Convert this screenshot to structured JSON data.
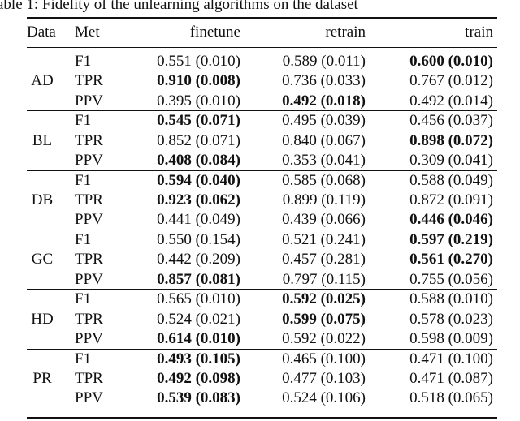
{
  "caption": "able 1: Fidelity of the unlearning algorithms on the dataset",
  "table": {
    "header": [
      "Data",
      "Met",
      "finetune",
      "retrain",
      "train"
    ],
    "groups": [
      {
        "data": "AD",
        "rows": [
          [
            "F1",
            "0.551 (0.010)",
            "0.589 (0.011)",
            "0.600 (0.010)"
          ],
          [
            "TPR",
            "0.910 (0.008)",
            "0.736 (0.033)",
            "0.767 (0.012)"
          ],
          [
            "PPV",
            "0.395 (0.010)",
            "0.492 (0.018)",
            "0.492 (0.014)"
          ]
        ],
        "bold": [
          [
            false,
            false,
            true
          ],
          [
            true,
            false,
            false
          ],
          [
            false,
            true,
            false
          ]
        ]
      },
      {
        "data": "BL",
        "rows": [
          [
            "F1",
            "0.545 (0.071)",
            "0.495 (0.039)",
            "0.456 (0.037)"
          ],
          [
            "TPR",
            "0.852 (0.071)",
            "0.840 (0.067)",
            "0.898 (0.072)"
          ],
          [
            "PPV",
            "0.408 (0.084)",
            "0.353 (0.041)",
            "0.309 (0.041)"
          ]
        ],
        "bold": [
          [
            true,
            false,
            false
          ],
          [
            false,
            false,
            true
          ],
          [
            true,
            false,
            false
          ]
        ]
      },
      {
        "data": "DB",
        "rows": [
          [
            "F1",
            "0.594 (0.040)",
            "0.585 (0.068)",
            "0.588 (0.049)"
          ],
          [
            "TPR",
            "0.923 (0.062)",
            "0.899 (0.119)",
            "0.872 (0.091)"
          ],
          [
            "PPV",
            "0.441 (0.049)",
            "0.439 (0.066)",
            "0.446 (0.046)"
          ]
        ],
        "bold": [
          [
            true,
            false,
            false
          ],
          [
            true,
            false,
            false
          ],
          [
            false,
            false,
            true
          ]
        ]
      },
      {
        "data": "GC",
        "rows": [
          [
            "F1",
            "0.550 (0.154)",
            "0.521 (0.241)",
            "0.597 (0.219)"
          ],
          [
            "TPR",
            "0.442 (0.209)",
            "0.457 (0.281)",
            "0.561 (0.270)"
          ],
          [
            "PPV",
            "0.857 (0.081)",
            "0.797 (0.115)",
            "0.755 (0.056)"
          ]
        ],
        "bold": [
          [
            false,
            false,
            true
          ],
          [
            false,
            false,
            true
          ],
          [
            true,
            false,
            false
          ]
        ]
      },
      {
        "data": "HD",
        "rows": [
          [
            "F1",
            "0.565 (0.010)",
            "0.592 (0.025)",
            "0.588 (0.010)"
          ],
          [
            "TPR",
            "0.524 (0.021)",
            "0.599 (0.075)",
            "0.578 (0.023)"
          ],
          [
            "PPV",
            "0.614 (0.010)",
            "0.592 (0.022)",
            "0.598 (0.009)"
          ]
        ],
        "bold": [
          [
            false,
            true,
            false
          ],
          [
            false,
            true,
            false
          ],
          [
            true,
            false,
            false
          ]
        ]
      },
      {
        "data": "PR",
        "rows": [
          [
            "F1",
            "0.493 (0.105)",
            "0.465 (0.100)",
            "0.471 (0.100)"
          ],
          [
            "TPR",
            "0.492 (0.098)",
            "0.477 (0.103)",
            "0.471 (0.087)"
          ],
          [
            "PPV",
            "0.539 (0.083)",
            "0.524 (0.106)",
            "0.518 (0.065)"
          ]
        ],
        "bold": [
          [
            true,
            false,
            false
          ],
          [
            true,
            false,
            false
          ],
          [
            true,
            false,
            false
          ]
        ]
      }
    ]
  }
}
